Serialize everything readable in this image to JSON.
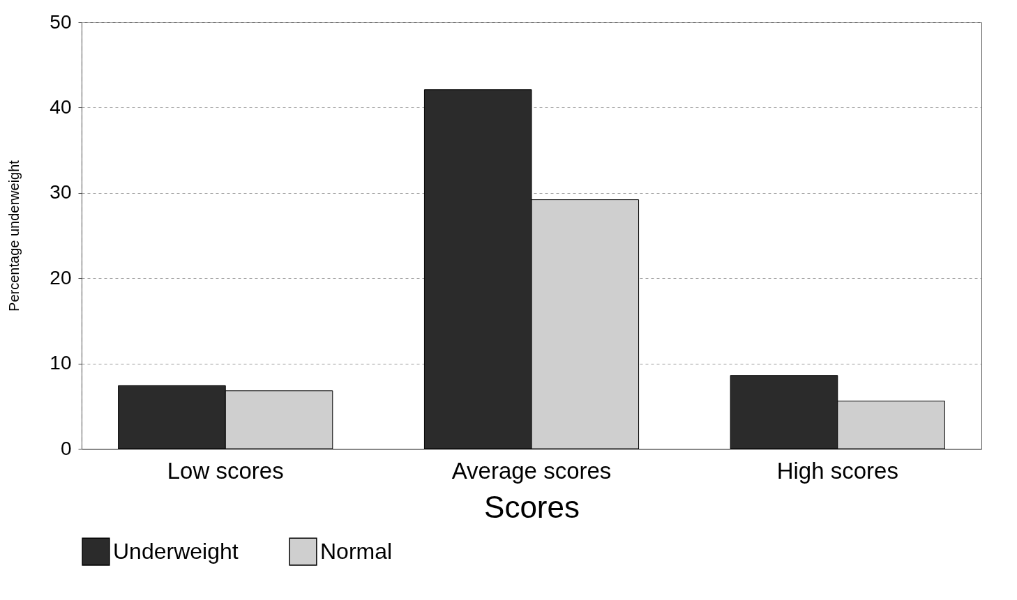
{
  "chart_data": {
    "type": "bar",
    "xlabel": "Scores",
    "ylabel": "Percentage underweight",
    "categories": [
      "Low scores",
      "Average scores",
      "High scores"
    ],
    "series": [
      {
        "name": "Underweight",
        "color": "#2b2b2b",
        "values": [
          7.4,
          42.1,
          8.6
        ]
      },
      {
        "name": "Normal",
        "color": "#cfcfcf",
        "values": [
          6.8,
          29.2,
          5.6
        ]
      }
    ],
    "ylim": [
      0,
      50
    ],
    "yticks": [
      0,
      10,
      20,
      30,
      40,
      50
    ],
    "grid": "y",
    "legend": "bottom"
  }
}
